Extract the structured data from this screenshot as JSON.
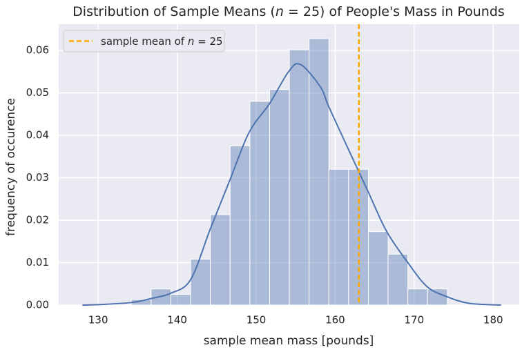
{
  "chart_data": {
    "type": "histogram",
    "title": [
      "Distribution of Sample Means (",
      "n",
      " = 25) of People's Mass in Pounds"
    ],
    "xlabel": "sample mean mass [pounds]",
    "ylabel": "frequency of occurence",
    "bins": [
      134.2,
      136.7,
      139.2,
      141.7,
      144.2,
      146.7,
      149.2,
      151.7,
      154.2,
      156.7,
      159.2,
      161.7,
      164.2,
      166.7,
      169.2,
      171.7,
      174.2
    ],
    "counts": [
      0.0013,
      0.0038,
      0.0025,
      0.0108,
      0.0213,
      0.0375,
      0.048,
      0.0508,
      0.0602,
      0.0628,
      0.032,
      0.032,
      0.0173,
      0.012,
      0.0038,
      0.0038
    ],
    "color": "#4c72b0",
    "kde": {
      "x": [
        128,
        130,
        134.2,
        136.6,
        139.2,
        141.7,
        144.2,
        146.7,
        149.1,
        151.7,
        154.1,
        155.6,
        158.1,
        159.2,
        161.6,
        164.1,
        166.5,
        169.2,
        171.6,
        174.1,
        177,
        181
      ],
      "y": [
        0,
        0.0001,
        0.0006,
        0.0015,
        0.0028,
        0.006,
        0.018,
        0.0296,
        0.0407,
        0.0475,
        0.055,
        0.0567,
        0.0515,
        0.0467,
        0.037,
        0.027,
        0.0174,
        0.01,
        0.0044,
        0.002,
        0.0004,
        0
      ],
      "color": "#4c72b0"
    },
    "vline": {
      "x": 163.0,
      "color": "#ffa500",
      "label": [
        "sample mean of ",
        "n",
        " = 25"
      ]
    },
    "legend": "upper left",
    "xlim": [
      125.0,
      183.3
    ],
    "ylim": [
      0,
      0.0662
    ],
    "xticks": [
      130,
      140,
      150,
      160,
      170,
      180
    ],
    "yticks": [
      {
        "value": 0,
        "label": "0.00"
      },
      0.01,
      0.02,
      0.03,
      0.04,
      0.05,
      0.06
    ],
    "grid": true
  }
}
